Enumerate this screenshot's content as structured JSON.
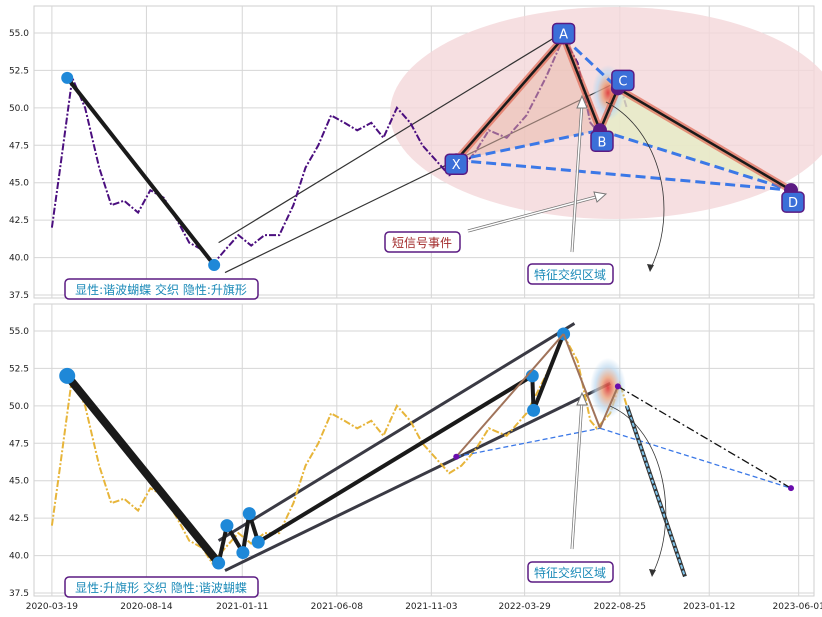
{
  "chart_data": {
    "type": "line",
    "x_ticks": [
      "2020-03-19",
      "2020-08-14",
      "2021-01-11",
      "2021-06-08",
      "2021-11-03",
      "2022-03-29",
      "2022-08-25",
      "2023-01-12",
      "2023-06-01"
    ],
    "x_range": [
      "2020-02-20",
      "2023-06-25"
    ],
    "grid": true,
    "colors": {
      "purple": "#4b0f7f",
      "gold": "#e7b53a",
      "blue": "#3b78e7",
      "node_blue": "#1e88d8",
      "black": "#1a1a1a",
      "label_border": "#5a1a82",
      "pink": "#f4d7da",
      "red_text": "#a22a2a",
      "cyan_text": "#1b8ab8"
    },
    "panels": [
      {
        "id": "top",
        "ylim": [
          37.3,
          56.8
        ],
        "y_ticks": [
          37.5,
          40.0,
          42.5,
          45.0,
          47.5,
          50.0,
          52.5,
          55.0
        ],
        "series": {
          "style": "dashdot",
          "color": "#4b0f7f",
          "points": [
            [
              "2020-03-19",
              42.0
            ],
            [
              "2020-04-01",
              46.0
            ],
            [
              "2020-04-20",
              52.0
            ],
            [
              "2020-05-10",
              50.0
            ],
            [
              "2020-06-01",
              46.0
            ],
            [
              "2020-06-20",
              43.5
            ],
            [
              "2020-07-10",
              43.8
            ],
            [
              "2020-08-01",
              43.0
            ],
            [
              "2020-08-20",
              44.5
            ],
            [
              "2020-09-10",
              44.0
            ],
            [
              "2020-10-01",
              42.5
            ],
            [
              "2020-10-20",
              41.0
            ],
            [
              "2020-11-10",
              40.5
            ],
            [
              "2020-11-25",
              39.5
            ],
            [
              "2020-12-15",
              40.5
            ],
            [
              "2021-01-05",
              41.5
            ],
            [
              "2021-01-25",
              40.8
            ],
            [
              "2021-02-15",
              41.5
            ],
            [
              "2021-03-10",
              41.5
            ],
            [
              "2021-04-01",
              43.5
            ],
            [
              "2021-04-20",
              46.0
            ],
            [
              "2021-05-10",
              47.5
            ],
            [
              "2021-05-30",
              49.5
            ],
            [
              "2021-06-20",
              49.0
            ],
            [
              "2021-07-10",
              48.5
            ],
            [
              "2021-08-01",
              49.0
            ],
            [
              "2021-08-20",
              48.0
            ],
            [
              "2021-09-10",
              50.0
            ],
            [
              "2021-10-01",
              49.0
            ],
            [
              "2021-10-20",
              47.5
            ],
            [
              "2021-11-10",
              46.5
            ],
            [
              "2021-12-01",
              45.5
            ],
            [
              "2021-12-20",
              46.0
            ],
            [
              "2022-01-10",
              47.0
            ],
            [
              "2022-02-01",
              48.5
            ],
            [
              "2022-03-01",
              48.0
            ],
            [
              "2022-04-01",
              49.5
            ],
            [
              "2022-05-01",
              52.0
            ],
            [
              "2022-05-29",
              54.7
            ],
            [
              "2022-06-20",
              53.0
            ],
            [
              "2022-07-10",
              49.0
            ],
            [
              "2022-07-20",
              48.5
            ],
            [
              "2022-08-10",
              49.5
            ],
            [
              "2022-08-25",
              51.5
            ],
            [
              "2022-09-05",
              50.0
            ]
          ]
        },
        "harmonic": {
          "X": [
            "2021-12-12",
            46.5
          ],
          "A": [
            "2022-05-29",
            54.7
          ],
          "B": [
            "2022-07-25",
            48.5
          ],
          "C": [
            "2022-08-22",
            51.3
          ],
          "D": [
            "2023-05-20",
            44.5
          ]
        },
        "channel": {
          "upper": [
            [
              "2020-12-05",
              41.0
            ],
            [
              "2022-06-15",
              55.5
            ]
          ],
          "lower": [
            [
              "2020-12-15",
              39.0
            ],
            [
              "2022-08-10",
              51.5
            ]
          ]
        },
        "drop_line": [
          [
            "2020-04-12",
            52.0
          ],
          [
            "2020-11-28",
            39.5
          ]
        ],
        "pattern_label": "显性:谐波蝴蝶 交织 隐性:升旗形",
        "event_label": "短信号事件",
        "zone_label": "特征交织区域",
        "point_labels": {
          "X": "X",
          "A": "A",
          "B": "B",
          "C": "C",
          "D": "D"
        }
      },
      {
        "id": "bottom",
        "ylim": [
          37.3,
          56.8
        ],
        "y_ticks": [
          37.5,
          40.0,
          42.5,
          45.0,
          47.5,
          50.0,
          52.5,
          55.0
        ],
        "series": {
          "style": "dashdot",
          "color": "#e7b53a",
          "points": [
            [
              "2020-03-19",
              42.0
            ],
            [
              "2020-04-01",
              46.0
            ],
            [
              "2020-04-20",
              52.0
            ],
            [
              "2020-05-10",
              50.0
            ],
            [
              "2020-06-01",
              46.0
            ],
            [
              "2020-06-20",
              43.5
            ],
            [
              "2020-07-10",
              43.8
            ],
            [
              "2020-08-01",
              43.0
            ],
            [
              "2020-08-20",
              44.5
            ],
            [
              "2020-09-10",
              44.0
            ],
            [
              "2020-10-01",
              42.5
            ],
            [
              "2020-10-20",
              41.0
            ],
            [
              "2020-11-10",
              40.5
            ],
            [
              "2020-11-25",
              39.5
            ],
            [
              "2020-12-15",
              40.5
            ],
            [
              "2021-01-05",
              41.5
            ],
            [
              "2021-01-25",
              40.8
            ],
            [
              "2021-02-15",
              41.5
            ],
            [
              "2021-03-10",
              41.5
            ],
            [
              "2021-04-01",
              43.5
            ],
            [
              "2021-04-20",
              46.0
            ],
            [
              "2021-05-10",
              47.5
            ],
            [
              "2021-05-30",
              49.5
            ],
            [
              "2021-06-20",
              49.0
            ],
            [
              "2021-07-10",
              48.5
            ],
            [
              "2021-08-01",
              49.0
            ],
            [
              "2021-08-20",
              48.0
            ],
            [
              "2021-09-10",
              50.0
            ],
            [
              "2021-10-01",
              49.0
            ],
            [
              "2021-10-20",
              47.5
            ],
            [
              "2021-11-10",
              46.5
            ],
            [
              "2021-12-01",
              45.5
            ],
            [
              "2021-12-20",
              46.0
            ],
            [
              "2022-01-10",
              47.0
            ],
            [
              "2022-02-01",
              48.5
            ],
            [
              "2022-03-01",
              48.0
            ],
            [
              "2022-04-01",
              49.5
            ],
            [
              "2022-05-01",
              52.0
            ],
            [
              "2022-05-29",
              54.7
            ],
            [
              "2022-06-20",
              53.0
            ],
            [
              "2022-07-10",
              49.0
            ],
            [
              "2022-07-20",
              48.5
            ],
            [
              "2022-08-10",
              49.5
            ],
            [
              "2022-08-25",
              51.5
            ],
            [
              "2022-09-05",
              50.0
            ]
          ]
        },
        "flag_nodes": [
          [
            "2020-04-12",
            52.0
          ],
          [
            "2020-12-05",
            39.5
          ],
          [
            "2020-12-18",
            42.0
          ],
          [
            "2021-01-12",
            40.2
          ],
          [
            "2021-01-22",
            42.8
          ],
          [
            "2021-02-05",
            40.9
          ],
          [
            "2022-04-10",
            52.0
          ],
          [
            "2022-04-12",
            49.7
          ],
          [
            "2022-05-29",
            54.8
          ]
        ],
        "channel": {
          "upper": [
            [
              "2020-12-05",
              41.0
            ],
            [
              "2022-06-15",
              55.5
            ]
          ],
          "lower": [
            [
              "2020-12-15",
              39.0
            ],
            [
              "2022-08-10",
              51.5
            ]
          ]
        },
        "harmonic_small": {
          "X": [
            "2021-12-12",
            46.6
          ],
          "A": [
            "2022-05-29",
            54.8
          ],
          "B": [
            "2022-07-25",
            48.5
          ],
          "C": [
            "2022-08-22",
            51.3
          ],
          "D": [
            "2023-05-20",
            44.5
          ]
        },
        "projection_end": [
          "2022-12-05",
          38.6
        ],
        "pattern_label": "显性:升旗形 交织 隐性:谐波蝴蝶",
        "zone_label": "特征交织区域"
      }
    ]
  }
}
